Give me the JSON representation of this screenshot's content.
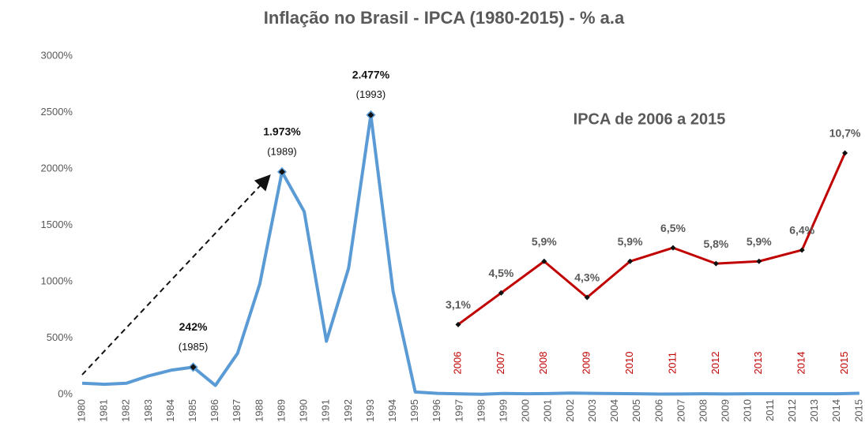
{
  "chart_data": [
    {
      "type": "line",
      "title": "Inflação no Brasil - IPCA (1980-2015) - % a.a",
      "categories": [
        "1980",
        "1981",
        "1982",
        "1983",
        "1984",
        "1985",
        "1986",
        "1987",
        "1988",
        "1989",
        "1990",
        "1991",
        "1992",
        "1993",
        "1994",
        "1995",
        "1996",
        "1997",
        "1998",
        "1999",
        "2000",
        "2001",
        "2002",
        "2003",
        "2004",
        "2005",
        "2006",
        "2007",
        "2008",
        "2009",
        "2010",
        "2011",
        "2012",
        "2013",
        "2014",
        "2015"
      ],
      "values": [
        100,
        90,
        100,
        165,
        215,
        242,
        80,
        365,
        980,
        1973,
        1621,
        472,
        1120,
        2477,
        916,
        22,
        9.6,
        5.2,
        1.7,
        8.9,
        6.0,
        7.7,
        12.5,
        9.3,
        7.6,
        5.7,
        3.1,
        4.5,
        5.9,
        4.3,
        5.9,
        6.5,
        5.8,
        5.9,
        6.4,
        10.7
      ],
      "value_labels": [
        null,
        null,
        null,
        null,
        null,
        "242%",
        null,
        null,
        null,
        "1.973%",
        null,
        null,
        null,
        "2.477%",
        null,
        null,
        null,
        null,
        null,
        null,
        null,
        null,
        null,
        null,
        null,
        null,
        null,
        null,
        null,
        null,
        null,
        null,
        null,
        null,
        null,
        null
      ],
      "annotations": [
        "(1985)",
        "(1989)",
        "(1993)"
      ],
      "color": "#5b9bd5",
      "ylim": [
        0,
        3000
      ],
      "yticks": [
        {
          "value": 0,
          "label": "0%"
        },
        {
          "value": 500,
          "label": "500%"
        },
        {
          "value": 1000,
          "label": "1000%"
        },
        {
          "value": 1500,
          "label": "1500%"
        },
        {
          "value": 2000,
          "label": "2000%"
        },
        {
          "value": 2500,
          "label": "2500%"
        },
        {
          "value": 3000,
          "label": "3000%"
        }
      ],
      "grid": false
    },
    {
      "type": "line",
      "title": "IPCA de 2006 a 2015",
      "categories": [
        "2006",
        "2007",
        "2008",
        "2009",
        "2010",
        "2011",
        "2012",
        "2013",
        "2014",
        "2015"
      ],
      "values": [
        3.1,
        4.5,
        5.9,
        4.3,
        5.9,
        6.5,
        5.8,
        5.9,
        6.4,
        10.7
      ],
      "value_labels": [
        "3,1%",
        "4,5%",
        "5,9%",
        "4,3%",
        "5,9%",
        "6,5%",
        "5,8%",
        "5,9%",
        "6,4%",
        "10,7%"
      ],
      "color": "#c00000",
      "ylim": [
        0,
        15
      ]
    }
  ]
}
